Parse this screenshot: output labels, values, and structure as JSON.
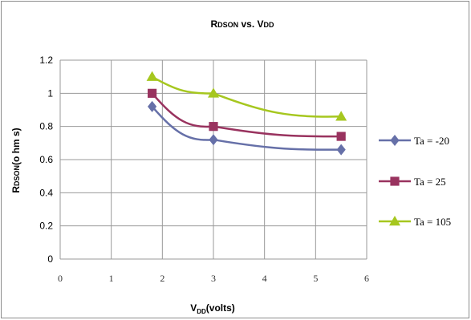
{
  "chart_data": {
    "type": "line",
    "title": "RDSON vs. VDD",
    "title_parts": {
      "main_big": "R",
      "main_small": "DSON",
      "mid": " vs. V",
      "tail_small": "DD"
    },
    "xlabel_parts": {
      "v": "V",
      "sub": "DD",
      "rest": "(volts)"
    },
    "ylabel_parts": {
      "r": "R",
      "small": "DSON",
      "rest": "(o hm s)"
    },
    "xlim": [
      0,
      6
    ],
    "ylim": [
      0,
      1.2
    ],
    "x_ticks": [
      0,
      1,
      2,
      3,
      4,
      5,
      6
    ],
    "y_ticks": [
      "0",
      "0.2",
      "0.4",
      "0.6",
      "0.8",
      "1",
      "1.2"
    ],
    "y_tick_values": [
      0,
      0.2,
      0.4,
      0.6,
      0.8,
      1.0,
      1.2
    ],
    "grid": true,
    "legend_position": "right",
    "series": [
      {
        "name": "Ta = -20",
        "color": "#6670a8",
        "marker": "diamond",
        "points": [
          [
            1.8,
            0.92
          ],
          [
            3.0,
            0.72
          ],
          [
            5.5,
            0.66
          ]
        ]
      },
      {
        "name": "Ta = 25",
        "color": "#99335f",
        "marker": "square",
        "points": [
          [
            1.8,
            1.0
          ],
          [
            3.0,
            0.8
          ],
          [
            5.5,
            0.74
          ]
        ]
      },
      {
        "name": "Ta = 105",
        "color": "#a6c71f",
        "marker": "triangle",
        "points": [
          [
            1.8,
            1.1
          ],
          [
            3.0,
            1.0
          ],
          [
            5.5,
            0.86
          ]
        ]
      }
    ]
  }
}
